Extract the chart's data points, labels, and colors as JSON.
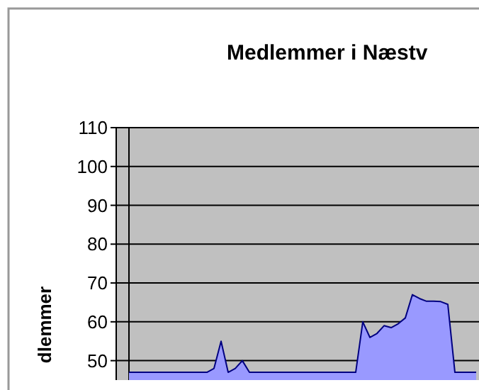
{
  "chart_data": {
    "type": "area",
    "title": "Medlemmer i Næstv",
    "ylabel": "dlemmer",
    "categories": [
      null,
      null,
      null,
      null,
      null,
      null,
      null,
      null,
      null,
      null,
      null,
      null,
      null,
      null,
      null,
      null,
      null,
      null,
      null,
      null,
      null,
      null,
      null,
      null,
      null,
      null,
      null,
      null,
      null,
      null,
      null,
      null,
      null,
      null,
      null,
      null,
      null,
      null,
      null,
      null,
      null,
      null,
      null,
      null,
      null,
      null,
      null,
      null,
      null,
      null
    ],
    "series": [
      {
        "color": "#9999ff",
        "values": [
          47,
          47,
          47,
          47,
          47,
          47,
          47,
          47,
          47,
          47,
          47,
          47,
          48,
          55,
          47,
          48,
          50,
          47,
          47,
          47,
          47,
          47,
          47,
          47,
          47,
          47,
          47,
          47,
          47,
          47,
          47,
          47,
          47,
          60,
          56,
          57,
          59,
          58.5,
          59.5,
          61,
          67,
          66,
          65.3,
          65.3,
          65.2,
          64.5,
          47,
          47,
          47,
          47
        ]
      }
    ],
    "ylim": [
      45,
      110
    ],
    "yticks": [
      50,
      60,
      70,
      80,
      90,
      100,
      110
    ],
    "grid": "y",
    "tick_labels": "y"
  }
}
